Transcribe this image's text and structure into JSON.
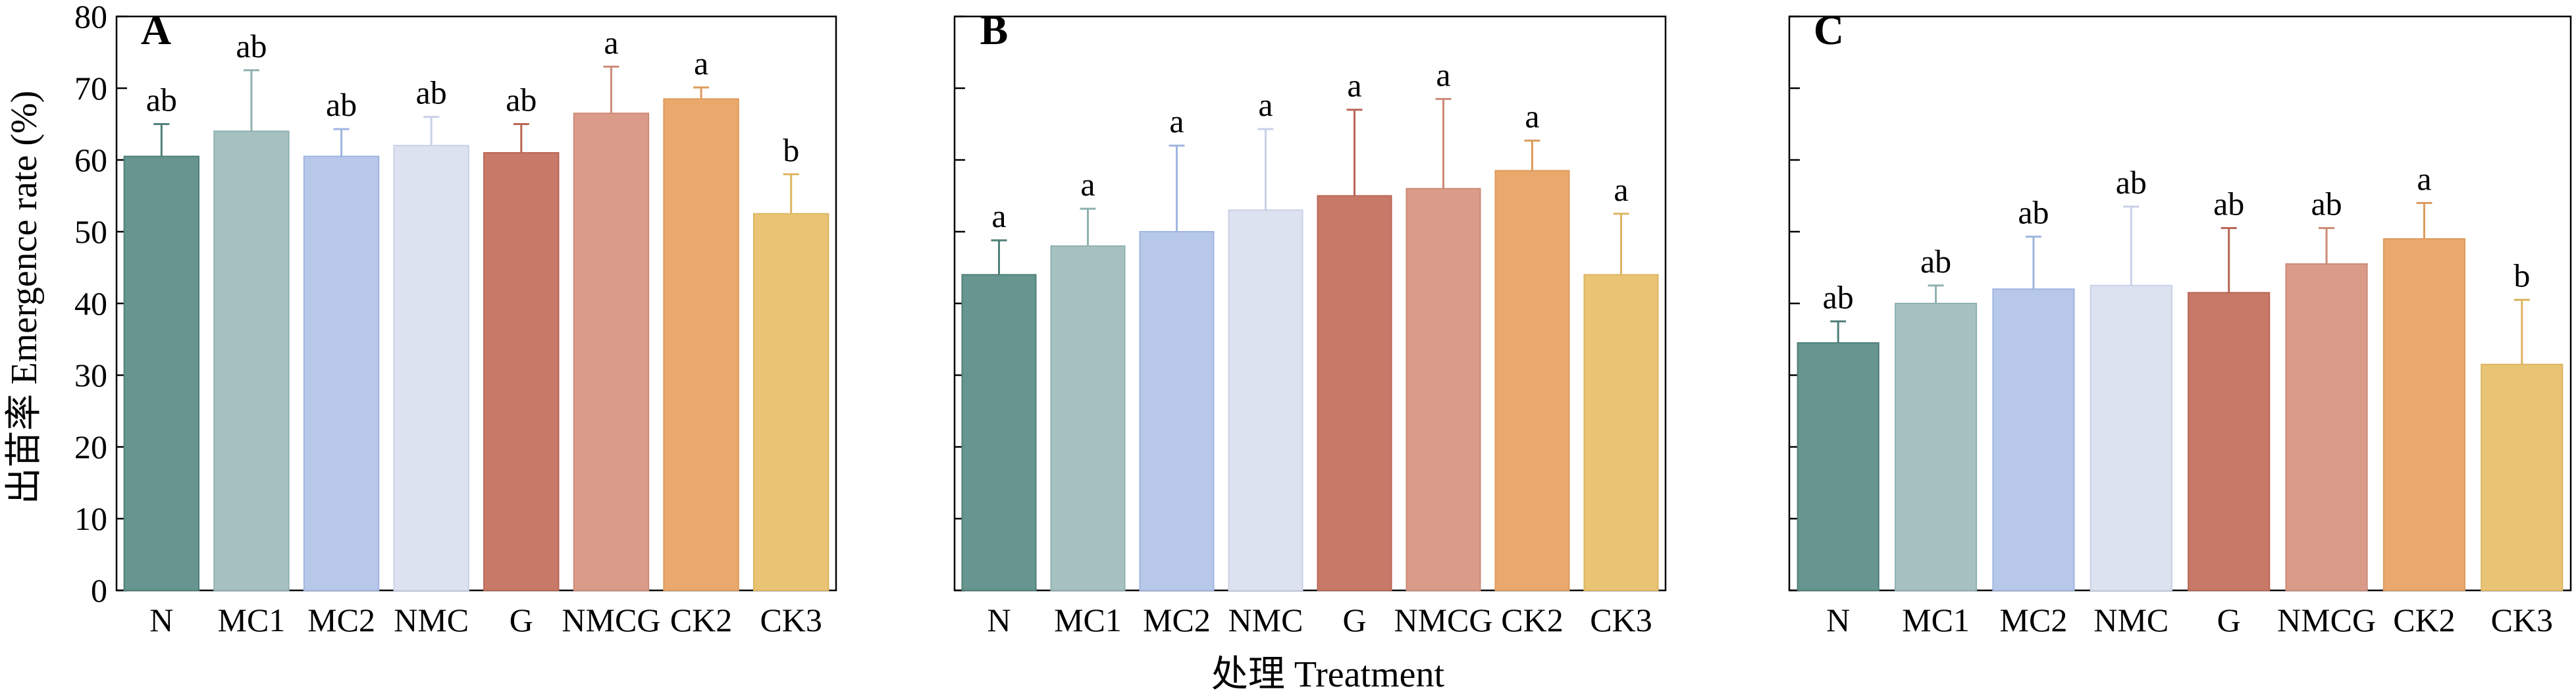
{
  "chart_data": [
    {
      "panel": "A",
      "type": "bar",
      "categories": [
        "N",
        "MC1",
        "MC2",
        "NMC",
        "G",
        "NMCG",
        "CK2",
        "CK3"
      ],
      "values": [
        60.5,
        64.0,
        60.5,
        62.0,
        61.0,
        66.5,
        68.5,
        52.5
      ],
      "errors": [
        4.5,
        8.5,
        3.8,
        4.0,
        4.0,
        6.5,
        1.6,
        5.5
      ],
      "letters": [
        "ab",
        "ab",
        "ab",
        "ab",
        "ab",
        "a",
        "a",
        "b"
      ],
      "ylim": [
        0,
        80
      ],
      "yticks": [
        "0",
        "10",
        "20",
        "30",
        "40",
        "50",
        "60",
        "70",
        "80"
      ],
      "ylabel": "出苗率 Emergence rate (%)"
    },
    {
      "panel": "B",
      "type": "bar",
      "categories": [
        "N",
        "MC1",
        "MC2",
        "NMC",
        "G",
        "NMCG",
        "CK2",
        "CK3"
      ],
      "values": [
        44.0,
        48.0,
        50.0,
        53.0,
        55.0,
        56.0,
        58.5,
        44.0
      ],
      "errors": [
        4.8,
        5.2,
        12.0,
        11.3,
        12.0,
        12.5,
        4.2,
        8.5
      ],
      "letters": [
        "a",
        "a",
        "a",
        "a",
        "a",
        "a",
        "a",
        "a"
      ],
      "ylim": [
        0,
        80
      ]
    },
    {
      "panel": "C",
      "type": "bar",
      "categories": [
        "N",
        "MC1",
        "MC2",
        "NMC",
        "G",
        "NMCG",
        "CK2",
        "CK3"
      ],
      "values": [
        34.5,
        40.0,
        42.0,
        42.5,
        41.5,
        45.5,
        49.0,
        31.5
      ],
      "errors": [
        3.0,
        2.5,
        7.3,
        11.0,
        9.0,
        5.0,
        5.0,
        9.0
      ],
      "letters": [
        "ab",
        "ab",
        "ab",
        "ab",
        "ab",
        "ab",
        "a",
        "b"
      ],
      "ylim": [
        0,
        80
      ]
    }
  ],
  "xlabel": "处理 Treatment",
  "colors": [
    "#67958f",
    "#a6c1c0",
    "#b7c8e9",
    "#dde2f0",
    "#c87968",
    "#da9c89",
    "#e9a96d",
    "#e9c475"
  ],
  "error_colors": [
    "#4f7f79",
    "#8fb1b0",
    "#9fb5e0",
    "#c9d1e8",
    "#b96655",
    "#cc8a77",
    "#dd9a5c",
    "#ddb560"
  ]
}
